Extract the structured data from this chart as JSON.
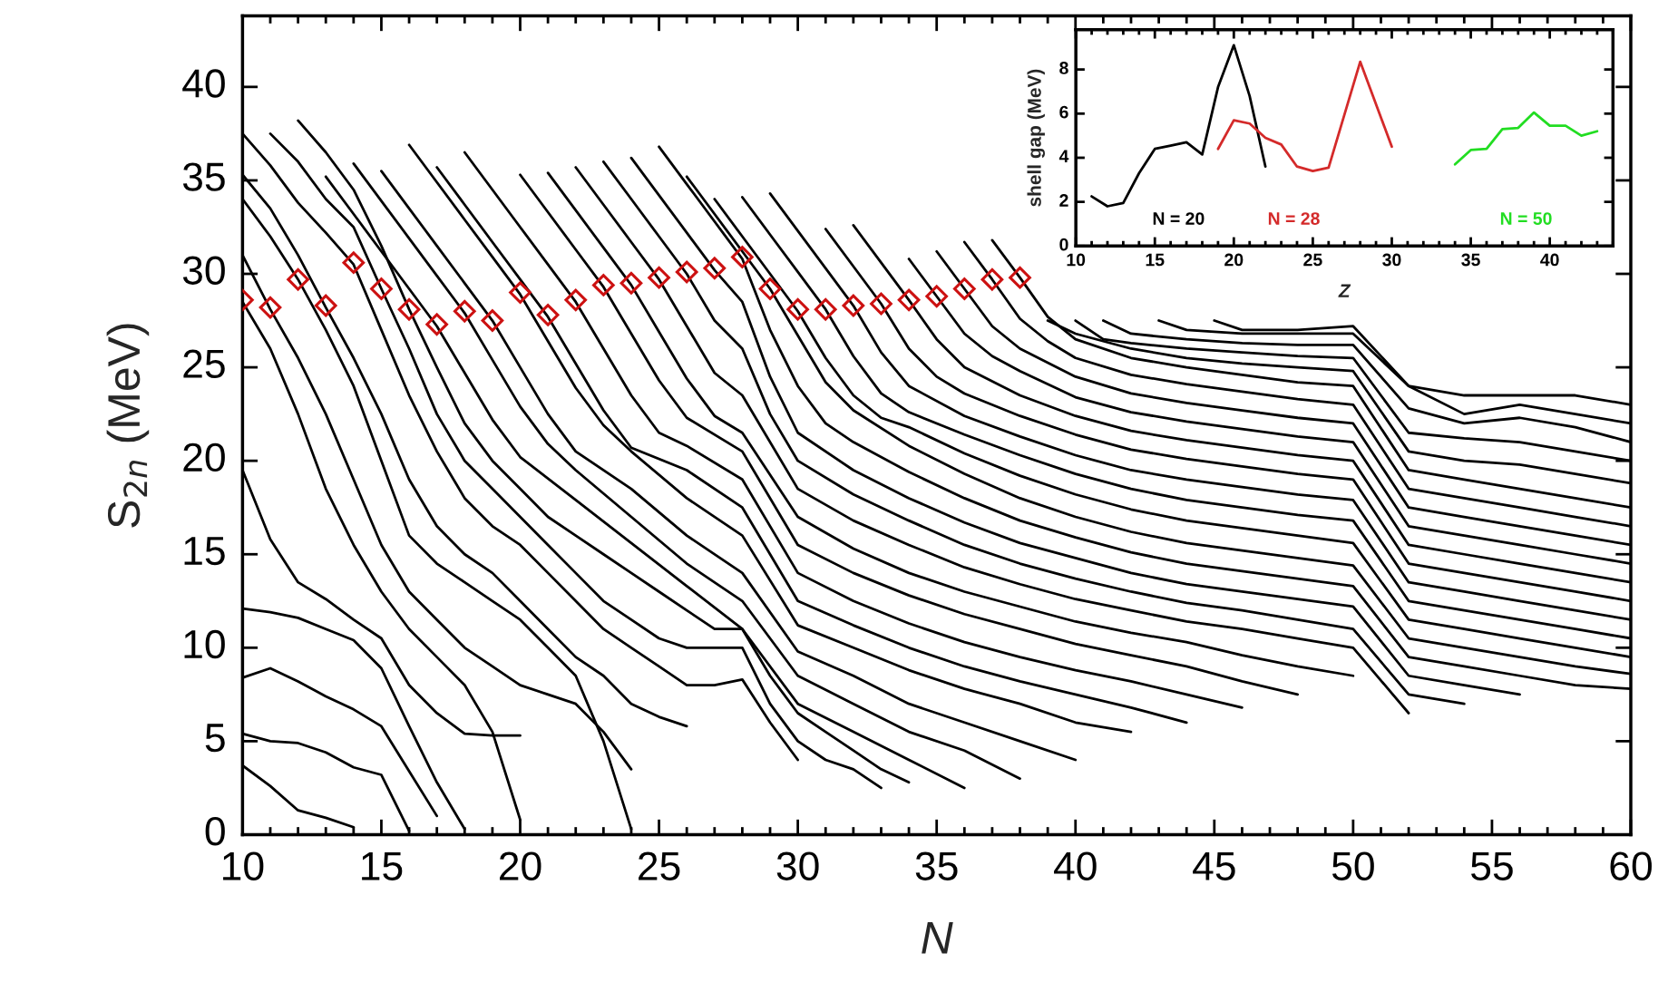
{
  "chart_data": [
    {
      "type": "line",
      "xlabel": "N",
      "ylabel": "S$_{2n}$ (MeV)",
      "xlim": [
        10,
        60
      ],
      "ylim": [
        0,
        43.8
      ],
      "xticks": [
        10,
        15,
        20,
        25,
        30,
        35,
        40,
        45,
        50,
        55,
        60
      ],
      "yticks": [
        0,
        5,
        10,
        15,
        20,
        25,
        30,
        35,
        40
      ],
      "series": [
        {
          "color": "#000000",
          "x": [
            10,
            11,
            12,
            13,
            14
          ],
          "values": [
            3.7,
            2.6,
            1.3,
            0.9,
            0.4
          ]
        },
        {
          "color": "#000000",
          "x": [
            10,
            11,
            12,
            13,
            14,
            15,
            16
          ],
          "values": [
            5.4,
            5.0,
            4.9,
            4.4,
            3.6,
            3.2,
            0.2
          ]
        },
        {
          "color": "#000000",
          "x": [
            10,
            11,
            12,
            13,
            14,
            15,
            16,
            17
          ],
          "values": [
            8.4,
            8.9,
            8.2,
            7.4,
            6.7,
            5.8,
            3.4,
            1.0
          ]
        },
        {
          "color": "#000000",
          "x": [
            10,
            11,
            12,
            13,
            14,
            15,
            16,
            17,
            18
          ],
          "values": [
            12.1,
            11.9,
            11.6,
            11.0,
            10.4,
            8.9,
            5.8,
            2.8,
            0.3
          ]
        },
        {
          "color": "#000000",
          "x": [
            10,
            11,
            12,
            13,
            14,
            15,
            16,
            17,
            18,
            19,
            20
          ],
          "values": [
            19.5,
            15.8,
            13.5,
            12.6,
            11.5,
            10.5,
            8.0,
            6.5,
            5.4,
            5.3,
            5.3
          ]
        },
        {
          "color": "#000000",
          "x": [
            10,
            11,
            12,
            13,
            14,
            15,
            16,
            17,
            18,
            19,
            20
          ],
          "values": [
            28.5,
            26.0,
            22.5,
            18.5,
            15.5,
            13.0,
            11.0,
            9.5,
            8.0,
            5.5,
            0.8
          ]
        },
        {
          "color": "#000000",
          "x": [
            10,
            11,
            12,
            13,
            14,
            15,
            16,
            17,
            18,
            19,
            20,
            21,
            22,
            23,
            24
          ],
          "values": [
            31.0,
            28.1,
            25.5,
            22.5,
            19.0,
            15.5,
            13.0,
            11.5,
            10.0,
            9.0,
            8.0,
            7.5,
            7.0,
            5.5,
            3.5
          ]
        },
        {
          "color": "#000000",
          "x": [
            10,
            11,
            12,
            13,
            14,
            15,
            16,
            17,
            18,
            19,
            20,
            21,
            22,
            23,
            24
          ],
          "values": [
            34.0,
            32.0,
            29.7,
            27.0,
            24.0,
            20.0,
            16.0,
            14.5,
            13.5,
            12.5,
            11.5,
            10.0,
            8.5,
            5.0,
            0.3
          ]
        },
        {
          "color": "#000000",
          "x": [
            10,
            11,
            12,
            13,
            14,
            15,
            16,
            17,
            18,
            19,
            20,
            21,
            22,
            23,
            24,
            25,
            26
          ],
          "values": [
            35.3,
            33.5,
            31.0,
            28.2,
            25.5,
            22.5,
            19.0,
            16.5,
            15.0,
            14.0,
            12.5,
            11.0,
            9.5,
            8.5,
            7.0,
            6.3,
            5.8
          ]
        },
        {
          "color": "#000000",
          "x": [
            10,
            11,
            12,
            13,
            14,
            15,
            16,
            17,
            18,
            19,
            20,
            21,
            22,
            23,
            24,
            25,
            26,
            27,
            28,
            29,
            30
          ],
          "values": [
            37.5,
            35.8,
            33.8,
            32.2,
            30.5,
            27.0,
            23.5,
            20.5,
            18.0,
            16.5,
            15.5,
            14.0,
            12.5,
            11.0,
            10.0,
            9.0,
            8.0,
            8.0,
            8.3,
            6.0,
            4.0
          ]
        },
        {
          "color": "#000000",
          "x": [
            11,
            12,
            13,
            14,
            15,
            16,
            17,
            18,
            19,
            20,
            21,
            22,
            23,
            24,
            25,
            26,
            27,
            28,
            29,
            30,
            31,
            32,
            33
          ],
          "values": [
            37.5,
            36.0,
            34.0,
            32.5,
            29.2,
            26.0,
            22.5,
            20.0,
            18.5,
            17.0,
            15.5,
            14.0,
            12.5,
            11.5,
            10.5,
            10.0,
            10.0,
            10.0,
            7.0,
            5.0,
            4.0,
            3.5,
            2.5
          ]
        },
        {
          "color": "#000000",
          "x": [
            12,
            13,
            14,
            15,
            16,
            17,
            18,
            19,
            20,
            21,
            22,
            23,
            24,
            25,
            26,
            27,
            28,
            29,
            30,
            31,
            32,
            33,
            34
          ],
          "values": [
            38.2,
            36.5,
            34.5,
            31.5,
            28.1,
            25.0,
            22.0,
            20.0,
            18.5,
            17.0,
            16.0,
            15.0,
            14.0,
            13.0,
            12.0,
            11.0,
            11.0,
            8.5,
            6.5,
            5.5,
            4.5,
            3.5,
            2.8
          ]
        },
        {
          "color": "#000000",
          "x": [
            13,
            14,
            15,
            16,
            17,
            18,
            19,
            20,
            22,
            24,
            26,
            28,
            30,
            32,
            34,
            36
          ],
          "values": [
            35.2,
            33.2,
            31.2,
            29.2,
            27.2,
            24.7,
            22.2,
            20.2,
            17.9,
            15.6,
            13.3,
            11.0,
            7.0,
            5.5,
            4.0,
            2.5
          ]
        },
        {
          "color": "#000000",
          "x": [
            14,
            15,
            16,
            17,
            18,
            19,
            20,
            21,
            22,
            24,
            26,
            28,
            30,
            32,
            34,
            36,
            38
          ],
          "values": [
            35.9,
            33.9,
            31.9,
            29.9,
            27.9,
            25.4,
            22.9,
            20.9,
            19.5,
            17.0,
            14.5,
            12.5,
            8.5,
            7.0,
            5.5,
            4.5,
            3.0
          ]
        },
        {
          "color": "#000000",
          "x": [
            15,
            16,
            17,
            18,
            19,
            20,
            21,
            22,
            24,
            26,
            28,
            30,
            32,
            34,
            36,
            38,
            40
          ],
          "values": [
            35.5,
            33.5,
            31.5,
            29.5,
            27.5,
            25.0,
            22.5,
            20.5,
            18.5,
            16.0,
            14.0,
            9.8,
            8.5,
            7.0,
            6.0,
            5.0,
            4.0
          ]
        },
        {
          "color": "#000000",
          "x": [
            16,
            17,
            18,
            19,
            20,
            21,
            22,
            23,
            24,
            26,
            28,
            30,
            32,
            34,
            36,
            38,
            40,
            42
          ],
          "values": [
            36.9,
            34.9,
            32.9,
            30.9,
            28.9,
            26.4,
            23.9,
            21.9,
            20.5,
            18.0,
            16.0,
            11.2,
            10.0,
            8.8,
            7.8,
            7.0,
            6.0,
            5.5
          ]
        },
        {
          "color": "#000000",
          "x": [
            17,
            18,
            19,
            20,
            21,
            22,
            23,
            24,
            26,
            28,
            30,
            32,
            34,
            36,
            38,
            40,
            42,
            44
          ],
          "values": [
            35.7,
            33.7,
            31.7,
            29.7,
            27.7,
            25.2,
            22.7,
            20.7,
            19.5,
            17.5,
            12.5,
            11.2,
            10.0,
            9.0,
            8.2,
            7.5,
            6.8,
            6.0
          ]
        },
        {
          "color": "#000000",
          "x": [
            18,
            19,
            20,
            21,
            22,
            23,
            24,
            25,
            26,
            28,
            30,
            32,
            34,
            36,
            38,
            40,
            42,
            44,
            46
          ],
          "values": [
            36.5,
            34.5,
            32.5,
            30.5,
            28.5,
            26.0,
            23.5,
            21.5,
            20.8,
            19.0,
            14.0,
            12.5,
            11.3,
            10.3,
            9.5,
            8.8,
            8.2,
            7.5,
            6.8
          ]
        },
        {
          "color": "#000000",
          "x": [
            20,
            21,
            22,
            23,
            24,
            25,
            26,
            28,
            30,
            32,
            34,
            36,
            38,
            40,
            42,
            44,
            46,
            48
          ],
          "values": [
            35.3,
            33.3,
            31.3,
            29.3,
            26.8,
            24.3,
            22.3,
            20.5,
            15.5,
            14.0,
            12.8,
            11.8,
            11.0,
            10.2,
            9.6,
            9.0,
            8.2,
            7.5
          ]
        },
        {
          "color": "#000000",
          "x": [
            21,
            22,
            23,
            24,
            25,
            26,
            27,
            28,
            30,
            32,
            34,
            36,
            38,
            40,
            42,
            44,
            46,
            48,
            50
          ],
          "values": [
            35.4,
            33.4,
            31.4,
            29.4,
            26.9,
            24.4,
            22.4,
            21.5,
            17.0,
            15.3,
            14.0,
            13.0,
            12.2,
            11.4,
            10.8,
            10.3,
            9.6,
            9.0,
            8.5
          ]
        },
        {
          "color": "#000000",
          "x": [
            22,
            23,
            24,
            25,
            26,
            27,
            28,
            30,
            32,
            34,
            36,
            38,
            40,
            42,
            44,
            46,
            48,
            50,
            52
          ],
          "values": [
            35.7,
            33.7,
            31.7,
            29.7,
            27.2,
            24.7,
            23.5,
            18.5,
            16.8,
            15.5,
            14.3,
            13.4,
            12.6,
            12.0,
            11.4,
            11.0,
            10.5,
            10.0,
            6.5
          ]
        },
        {
          "color": "#000000",
          "x": [
            23,
            24,
            25,
            26,
            27,
            28,
            29,
            30,
            32,
            34,
            36,
            38,
            40,
            42,
            44,
            46,
            48,
            50,
            52,
            54
          ],
          "values": [
            36.0,
            34.0,
            32.0,
            30.0,
            27.5,
            26.0,
            22.5,
            20.0,
            18.2,
            16.8,
            15.5,
            14.5,
            13.7,
            13.0,
            12.4,
            12.0,
            11.5,
            11.0,
            7.5,
            7.0
          ]
        },
        {
          "color": "#000000",
          "x": [
            24,
            25,
            26,
            27,
            28,
            29,
            30,
            32,
            34,
            36,
            38,
            40,
            42,
            44,
            46,
            48,
            50,
            52,
            54,
            56
          ],
          "values": [
            36.2,
            34.2,
            32.2,
            30.2,
            28.5,
            24.5,
            21.5,
            19.5,
            18.0,
            16.7,
            15.6,
            14.8,
            14.0,
            13.4,
            13.0,
            12.6,
            12.2,
            8.5,
            8.0,
            7.5
          ]
        },
        {
          "color": "#000000",
          "x": [
            25,
            26,
            27,
            28,
            29,
            30,
            31,
            32,
            34,
            36,
            38,
            40,
            42,
            44,
            46,
            48,
            50,
            52,
            54,
            56,
            58,
            60
          ],
          "values": [
            36.8,
            34.8,
            32.8,
            30.8,
            27.0,
            24.0,
            22.0,
            21.0,
            19.4,
            18.0,
            16.8,
            15.9,
            15.1,
            14.5,
            14.1,
            13.7,
            13.3,
            9.5,
            9.0,
            8.5,
            8.0,
            7.8
          ]
        },
        {
          "color": "#000000",
          "x": [
            26,
            27,
            28,
            29,
            30,
            31,
            32,
            34,
            36,
            38,
            40,
            42,
            44,
            46,
            48,
            50,
            52,
            54,
            56,
            58,
            60
          ],
          "values": [
            35.2,
            33.2,
            31.2,
            29.2,
            26.7,
            24.2,
            22.7,
            20.8,
            19.3,
            18.0,
            17.0,
            16.2,
            15.6,
            15.2,
            14.8,
            14.4,
            10.5,
            10.0,
            9.5,
            9.0,
            8.6
          ]
        },
        {
          "color": "#000000",
          "x": [
            27,
            28,
            29,
            30,
            31,
            32,
            33,
            34,
            36,
            38,
            40,
            42,
            44,
            46,
            48,
            50,
            52,
            54,
            56,
            58,
            60
          ],
          "values": [
            34.0,
            32.0,
            30.0,
            28.0,
            25.5,
            23.5,
            22.3,
            21.8,
            20.4,
            19.2,
            18.2,
            17.4,
            16.8,
            16.4,
            16.0,
            15.6,
            11.5,
            11.0,
            10.5,
            10.0,
            9.5
          ]
        },
        {
          "color": "#000000",
          "x": [
            28,
            29,
            30,
            31,
            32,
            33,
            34,
            36,
            38,
            40,
            42,
            44,
            46,
            48,
            50,
            52,
            54,
            56,
            58,
            60
          ],
          "values": [
            34.1,
            32.1,
            30.1,
            28.1,
            25.6,
            23.6,
            22.6,
            21.4,
            20.3,
            19.3,
            18.5,
            17.9,
            17.5,
            17.1,
            16.8,
            12.5,
            12.0,
            11.5,
            11.0,
            10.5
          ]
        },
        {
          "color": "#000000",
          "x": [
            29,
            30,
            31,
            32,
            33,
            34,
            36,
            38,
            40,
            42,
            44,
            46,
            48,
            50,
            52,
            54,
            56,
            58,
            60
          ],
          "values": [
            34.3,
            32.3,
            30.3,
            28.3,
            25.8,
            24.0,
            22.4,
            21.3,
            20.3,
            19.5,
            19.0,
            18.6,
            18.2,
            17.9,
            13.5,
            13.0,
            12.5,
            12.0,
            11.5
          ]
        },
        {
          "color": "#000000",
          "x": [
            31,
            32,
            33,
            34,
            35,
            36,
            38,
            40,
            42,
            44,
            46,
            48,
            50,
            52,
            54,
            56,
            58,
            60
          ],
          "values": [
            32.4,
            30.4,
            28.4,
            26.0,
            24.5,
            23.6,
            22.4,
            21.4,
            20.6,
            20.1,
            19.7,
            19.3,
            19.0,
            14.5,
            14.0,
            13.5,
            13.0,
            12.5
          ]
        },
        {
          "color": "#000000",
          "x": [
            32,
            33,
            34,
            35,
            36,
            38,
            40,
            42,
            44,
            46,
            48,
            50,
            52,
            54,
            56,
            58,
            60
          ],
          "values": [
            32.6,
            30.6,
            28.6,
            26.5,
            25.0,
            23.5,
            22.4,
            21.6,
            21.1,
            20.7,
            20.3,
            20.0,
            15.5,
            15.0,
            14.5,
            14.0,
            13.5
          ]
        },
        {
          "color": "#000000",
          "x": [
            34,
            35,
            36,
            37,
            38,
            40,
            42,
            44,
            46,
            48,
            50,
            52,
            54,
            56,
            58,
            60
          ],
          "values": [
            30.8,
            28.8,
            26.8,
            25.6,
            24.8,
            23.4,
            22.6,
            22.1,
            21.7,
            21.3,
            21.0,
            16.5,
            16.0,
            15.5,
            15.0,
            14.5
          ]
        },
        {
          "color": "#000000",
          "x": [
            35,
            36,
            37,
            38,
            40,
            42,
            44,
            46,
            48,
            50,
            52,
            54,
            56,
            58,
            60
          ],
          "values": [
            31.2,
            29.2,
            27.2,
            26.0,
            24.5,
            23.6,
            23.1,
            22.7,
            22.3,
            22.0,
            17.5,
            17.0,
            16.5,
            16.0,
            15.5
          ]
        },
        {
          "color": "#000000",
          "x": [
            36,
            37,
            38,
            39,
            40,
            42,
            44,
            46,
            48,
            50,
            52,
            54,
            56,
            58,
            60
          ],
          "values": [
            31.7,
            29.7,
            27.6,
            26.4,
            25.5,
            24.6,
            24.1,
            23.7,
            23.3,
            23.0,
            18.5,
            18.0,
            17.5,
            17.0,
            16.5
          ]
        },
        {
          "color": "#000000",
          "x": [
            37,
            38,
            39,
            40,
            42,
            44,
            46,
            48,
            50,
            52,
            54,
            56,
            58,
            60
          ],
          "values": [
            31.8,
            29.8,
            27.7,
            26.5,
            25.5,
            25.0,
            24.6,
            24.2,
            24.0,
            19.5,
            19.0,
            18.5,
            18.0,
            17.5
          ]
        },
        {
          "color": "#000000",
          "x": [
            39,
            40,
            42,
            44,
            46,
            48,
            50,
            52,
            54,
            56,
            58,
            60
          ],
          "values": [
            27.5,
            26.8,
            26.0,
            25.5,
            25.2,
            25.0,
            24.8,
            20.5,
            20.0,
            19.8,
            19.3,
            18.8
          ]
        },
        {
          "color": "#000000",
          "x": [
            40,
            41,
            42,
            44,
            46,
            48,
            50,
            52,
            54,
            56,
            58,
            60
          ],
          "values": [
            27.5,
            26.5,
            26.3,
            26.0,
            25.8,
            25.6,
            25.5,
            21.5,
            21.2,
            21.0,
            20.5,
            20.0
          ]
        },
        {
          "color": "#000000",
          "x": [
            41,
            42,
            44,
            46,
            48,
            50,
            52,
            54,
            56,
            58,
            60
          ],
          "values": [
            27.5,
            26.8,
            26.5,
            26.3,
            26.2,
            26.2,
            22.8,
            22.0,
            22.3,
            21.8,
            21.0
          ]
        },
        {
          "color": "#000000",
          "x": [
            43,
            44,
            46,
            48,
            50,
            52,
            54,
            56,
            58,
            60
          ],
          "values": [
            27.5,
            27.0,
            26.8,
            26.8,
            26.8,
            24.0,
            22.5,
            23.0,
            22.5,
            22.0
          ]
        },
        {
          "color": "#000000",
          "x": [
            45,
            46,
            48,
            50,
            52,
            54,
            56,
            58,
            60
          ],
          "values": [
            27.5,
            27.0,
            27.0,
            27.2,
            24.0,
            23.5,
            23.5,
            23.5,
            23.0
          ]
        },
        {
          "type": "scatter",
          "marker": "diamond",
          "color": "#cc1111",
          "x": [
            10,
            11,
            12,
            13,
            14,
            15,
            16,
            17,
            18,
            19,
            20,
            21,
            22,
            23,
            24,
            25,
            26,
            27,
            28,
            29,
            30,
            31,
            32,
            33,
            34,
            35,
            36,
            37,
            38
          ],
          "values": [
            28.6,
            28.2,
            29.7,
            28.3,
            30.6,
            29.2,
            28.1,
            27.3,
            28.0,
            27.5,
            29.0,
            27.8,
            28.6,
            29.4,
            29.5,
            29.8,
            30.1,
            30.3,
            30.9,
            29.2,
            28.1,
            28.1,
            28.3,
            28.4,
            28.6,
            28.8,
            29.2,
            29.7,
            29.8
          ]
        }
      ]
    },
    {
      "type": "line",
      "xlabel": "Z",
      "ylabel": "shell gap (MeV)",
      "xlim": [
        10,
        44
      ],
      "ylim": [
        0,
        9.8
      ],
      "xticks": [
        10,
        15,
        20,
        25,
        30,
        35,
        40
      ],
      "yticks": [
        0,
        2,
        4,
        6,
        8
      ],
      "series": [
        {
          "name": "N = 20",
          "color": "#000000",
          "x": [
            11,
            12,
            13,
            14,
            15,
            16,
            17,
            18,
            19,
            20,
            21,
            22
          ],
          "values": [
            2.25,
            1.8,
            1.95,
            3.3,
            4.4,
            4.55,
            4.7,
            4.15,
            7.2,
            9.1,
            6.8,
            3.6
          ]
        },
        {
          "name": "N = 28",
          "color": "#d42a2a",
          "x": [
            19,
            20,
            21,
            22,
            23,
            24,
            25,
            26,
            28,
            30
          ],
          "values": [
            4.4,
            5.7,
            5.55,
            4.9,
            4.6,
            3.6,
            3.4,
            3.55,
            8.35,
            4.5
          ]
        },
        {
          "name": "N = 50",
          "color": "#22dd22",
          "x": [
            34,
            35,
            36,
            37,
            38,
            39,
            40,
            41,
            42,
            43
          ],
          "values": [
            3.7,
            4.35,
            4.4,
            5.3,
            5.35,
            6.05,
            5.45,
            5.45,
            5.0,
            5.2
          ]
        }
      ]
    }
  ]
}
